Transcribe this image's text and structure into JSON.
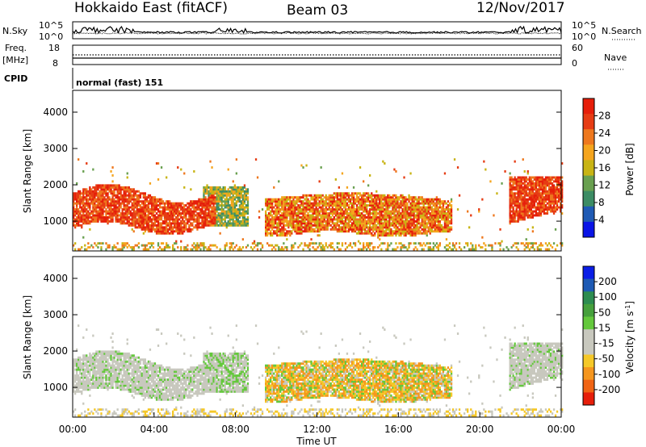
{
  "header": {
    "station": "Hokkaido East (fitACF)",
    "beam": "Beam 03",
    "date": "12/Nov/2017"
  },
  "noise_panel": {
    "left_label": "N.Sky",
    "right_label": "N.Search",
    "ticks": [
      "10^5",
      "10^0"
    ]
  },
  "freq_panel": {
    "left_label_1": "Freq.",
    "left_label_2": "[MHz]",
    "left_ticks": [
      "18",
      "8"
    ],
    "right_label": "Nave",
    "right_ticks": [
      "60",
      "0"
    ]
  },
  "cpid": {
    "label": "CPID",
    "value": "normal (fast) 151"
  },
  "colors": {
    "power_scale": [
      "#0a14e6",
      "#1f5ab4",
      "#3c8c64",
      "#69a050",
      "#c8b414",
      "#f5a51e",
      "#ee781e",
      "#e63c14",
      "#e61e0a"
    ],
    "velocity_scale": [
      "#e61e0a",
      "#f06414",
      "#f5961e",
      "#f5c828",
      "#c8c8be",
      "#c8c8be",
      "#64c83c",
      "#46a03c",
      "#2d8c50",
      "#1e5ab4",
      "#0a1ee6"
    ]
  },
  "chart_data": [
    {
      "type": "heatmap",
      "name": "power",
      "xlabel": "",
      "ylabel": "Slant Range [km]",
      "xlim": [
        "00:00",
        "24:00"
      ],
      "ylim": [
        180,
        4600
      ],
      "y_ticks": [
        "1000",
        "2000",
        "3000",
        "4000"
      ],
      "colorbar_label": "Power [dB]",
      "colorbar_ticks": [
        "28",
        "24",
        "20",
        "16",
        "12",
        "8",
        "4"
      ],
      "colorbar_range": [
        0,
        32
      ],
      "regions": [
        {
          "t0": 0.0,
          "t1": 7.0,
          "r0": 800,
          "r1": 1800,
          "level": "high"
        },
        {
          "t0": 6.5,
          "t1": 8.5,
          "r0": 900,
          "r1": 2000,
          "level": "medium"
        },
        {
          "t0": 9.5,
          "t1": 18.5,
          "r0": 600,
          "r1": 1700,
          "level": "medium-high"
        },
        {
          "t0": 21.5,
          "t1": 24.0,
          "r0": 900,
          "r1": 2200,
          "level": "high"
        }
      ]
    },
    {
      "type": "heatmap",
      "name": "velocity",
      "xlabel": "Time UT",
      "ylabel": "Slant Range [km]",
      "xlim": [
        "00:00",
        "24:00"
      ],
      "ylim": [
        180,
        4600
      ],
      "x_ticks": [
        "00:00",
        "04:00",
        "08:00",
        "12:00",
        "16:00",
        "20:00",
        "00:00"
      ],
      "y_ticks": [
        "1000",
        "2000",
        "3000",
        "4000"
      ],
      "colorbar_label": "Velocity [m s^-1]",
      "colorbar_ticks": [
        "200",
        "100",
        "50",
        "15",
        "-15",
        "-50",
        "-100",
        "-200"
      ],
      "colorbar_range": [
        -250,
        250
      ]
    }
  ]
}
